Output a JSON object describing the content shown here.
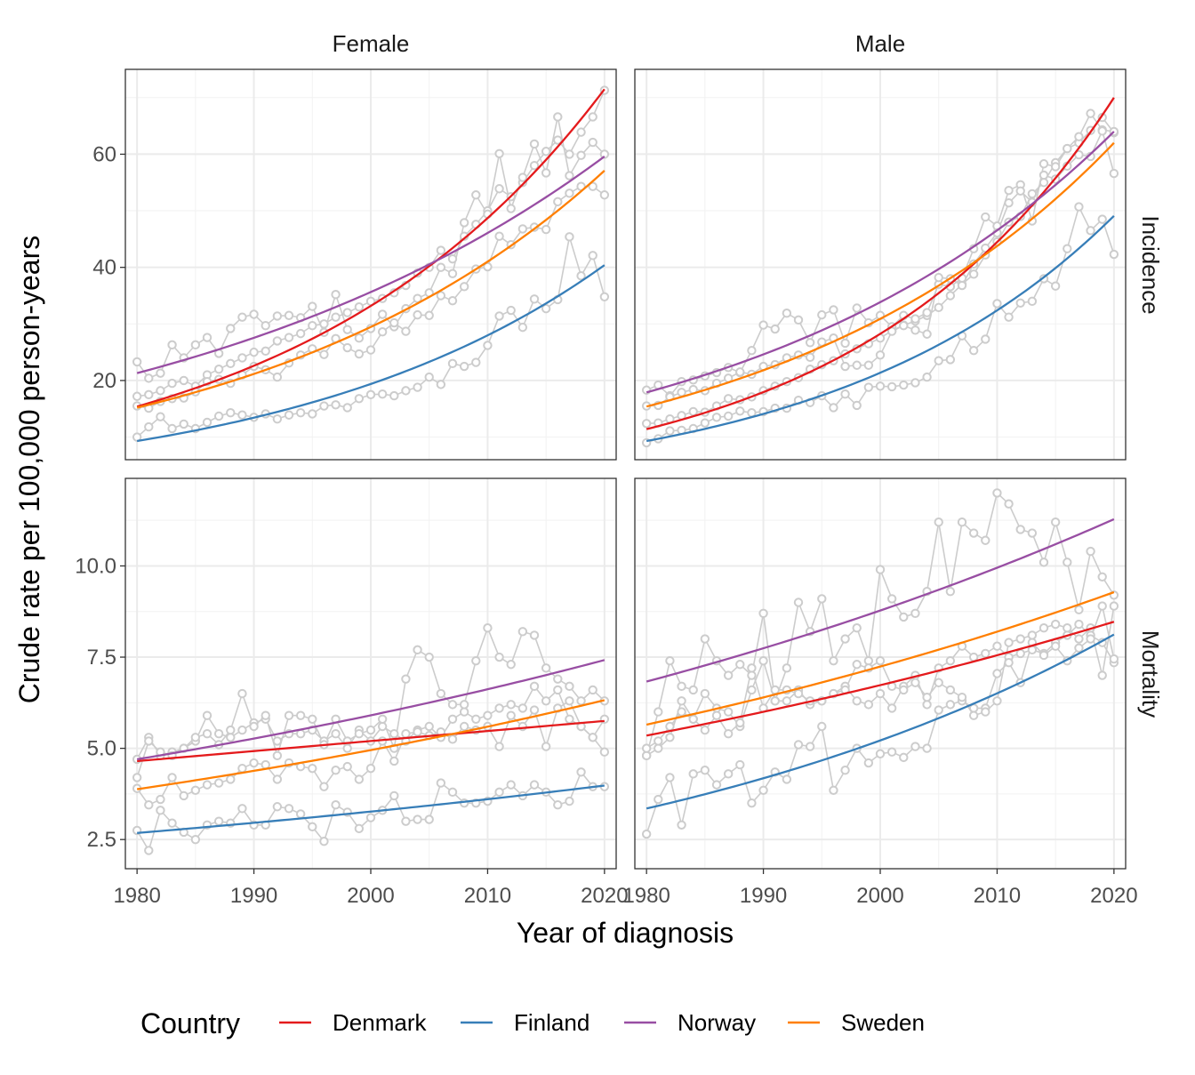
{
  "chart_data": {
    "type": "line",
    "subtype": "faceted line chart with observed points and fitted trend lines",
    "xlabel": "Year of diagnosis",
    "ylabel": "Crude rate per 100,000 person-years",
    "col_facets": [
      "Female",
      "Male"
    ],
    "row_facets": [
      "Incidence",
      "Mortality"
    ],
    "x_ticks": [
      1980,
      1990,
      2000,
      2010,
      2020
    ],
    "xlim": [
      1979,
      2021
    ],
    "row_scales": {
      "Incidence": {
        "ylim": [
          6,
          75
        ],
        "ticks": [
          20,
          40,
          60
        ],
        "tick_labels": [
          "20",
          "40",
          "60"
        ]
      },
      "Mortality": {
        "ylim": [
          1.7,
          12.4
        ],
        "ticks": [
          2.5,
          5.0,
          7.5,
          10.0
        ],
        "tick_labels": [
          "2.5",
          "5.0",
          "7.5",
          "10.0"
        ]
      }
    },
    "legend": {
      "title": "Country",
      "position": "bottom",
      "items": [
        {
          "label": "Denmark",
          "color": "#e41a1c"
        },
        {
          "label": "Finland",
          "color": "#377eb8"
        },
        {
          "label": "Norway",
          "color": "#984ea3"
        },
        {
          "label": "Sweden",
          "color": "#ff7f00"
        }
      ]
    },
    "observed_color": "#cccccc",
    "years": [
      1980,
      1981,
      1982,
      1983,
      1984,
      1985,
      1986,
      1987,
      1988,
      1989,
      1990,
      1991,
      1992,
      1993,
      1994,
      1995,
      1996,
      1997,
      1998,
      1999,
      2000,
      2001,
      2002,
      2003,
      2004,
      2005,
      2006,
      2007,
      2008,
      2009,
      2010,
      2011,
      2012,
      2013,
      2014,
      2015,
      2016,
      2017,
      2018,
      2019,
      2020
    ],
    "panels": [
      {
        "row": "Incidence",
        "col": "Female",
        "fitted": {
          "Denmark": {
            "start": 15.4,
            "end": 71.5,
            "model": "exponential"
          },
          "Finland": {
            "start": 9.3,
            "end": 40.4,
            "model": "exponential"
          },
          "Norway": {
            "start": 21.3,
            "end": 59.6,
            "model": "exponential"
          },
          "Sweden": {
            "start": 15.2,
            "end": 57.1,
            "model": "exponential"
          }
        },
        "observed": {
          "Denmark": [
            17.2,
            17.5,
            18.2,
            19.5,
            20,
            19,
            21,
            22,
            23,
            24,
            25,
            25.2,
            27,
            27.6,
            28.3,
            29.7,
            30,
            31.2,
            32,
            33,
            34,
            34.5,
            35.5,
            36.8,
            39,
            40,
            43,
            41.5,
            45.5,
            47.6,
            50,
            53.9,
            52.5,
            55,
            58,
            60.5,
            62.5,
            60,
            63.9,
            66.6,
            71.3
          ],
          "Finland": [
            10,
            11.8,
            13.6,
            11.5,
            12.3,
            11.5,
            12.6,
            13.7,
            14.3,
            13.9,
            13.5,
            14.1,
            13.2,
            13.9,
            14.3,
            14.1,
            15.5,
            15.7,
            15.2,
            16.8,
            17.5,
            17.6,
            17.3,
            18.2,
            18.8,
            20.6,
            19.3,
            23,
            22.5,
            23.2,
            26.2,
            31.4,
            32.4,
            29.4,
            34.4,
            32.7,
            34.3,
            45.4,
            38.5,
            42.1,
            34.8
          ],
          "Norway": [
            23.3,
            20.4,
            21.3,
            26.3,
            24,
            26.3,
            27.6,
            24.8,
            29.2,
            31.2,
            31.7,
            29.7,
            31.4,
            31.5,
            31.1,
            33.1,
            28.5,
            35.2,
            29,
            27.5,
            29.2,
            31.7,
            29.5,
            32.7,
            34.5,
            35.5,
            40,
            38.9,
            47.9,
            52.8,
            49.4,
            60.1,
            50.4,
            55.9,
            61.8,
            56.7,
            66.6,
            56.2,
            59.8,
            62.1,
            60
          ],
          "Sweden": [
            15.5,
            15.1,
            16.3,
            16.8,
            16.9,
            18,
            19.8,
            20.2,
            19.5,
            21,
            22.5,
            21.9,
            20.6,
            23.1,
            24.5,
            25.6,
            24.6,
            27.4,
            25.8,
            24.7,
            25.4,
            28.6,
            30.2,
            28.7,
            31.6,
            31.5,
            35,
            34.1,
            36.6,
            39.7,
            40.1,
            45.5,
            44,
            46.8,
            47.1,
            46.7,
            51.6,
            53.1,
            54.3,
            54.3,
            52.8
          ]
        }
      },
      {
        "row": "Incidence",
        "col": "Male",
        "fitted": {
          "Denmark": {
            "start": 11.4,
            "end": 70.0,
            "model": "exponential"
          },
          "Finland": {
            "start": 9.3,
            "end": 49.1,
            "model": "exponential"
          },
          "Norway": {
            "start": 17.9,
            "end": 64.0,
            "model": "exponential"
          },
          "Sweden": {
            "start": 15.4,
            "end": 62.0,
            "model": "exponential"
          }
        },
        "observed": {
          "Denmark": [
            12.4,
            12.5,
            13.2,
            13.8,
            14.5,
            14.4,
            15.5,
            16.8,
            16.6,
            17.1,
            18.2,
            19,
            19.8,
            20.5,
            22,
            22.8,
            23.5,
            24.7,
            25.6,
            26.5,
            27.5,
            28.8,
            29.8,
            30.5,
            31.5,
            32.9,
            35,
            37,
            38.8,
            42.2,
            44.5,
            48,
            49,
            53,
            55,
            58.5,
            61,
            62,
            64.2,
            66.5,
            63.8
          ],
          "Finland": [
            9,
            9.7,
            11.1,
            11.2,
            11.5,
            12.5,
            13.5,
            13.7,
            14.6,
            14.3,
            14.5,
            15.1,
            15.1,
            16.5,
            16.1,
            17.3,
            15.2,
            17.6,
            15.6,
            18.8,
            19,
            18.9,
            19.2,
            19.6,
            20.6,
            23.5,
            23.7,
            27.9,
            25.3,
            27.3,
            33.6,
            31.2,
            33.7,
            34,
            38,
            36.7,
            43.3,
            50.7,
            46.5,
            48.5,
            42.3
          ],
          "Norway": [
            18.3,
            19.2,
            17.3,
            19.8,
            20.1,
            20.8,
            21.4,
            22.3,
            21.4,
            25.3,
            29.8,
            29.1,
            31.9,
            30.7,
            26.7,
            31.6,
            32.5,
            26.6,
            32.8,
            30.2,
            31.5,
            29.5,
            31.5,
            30.9,
            32,
            37,
            36.6,
            38.1,
            43.3,
            48.9,
            47.3,
            53.6,
            54.6,
            48.2,
            58.3,
            57.8,
            61,
            63.1,
            67.2,
            64.3,
            64
          ],
          "Sweden": [
            15.5,
            15.6,
            17.1,
            17.9,
            18.4,
            18.2,
            19.5,
            20.4,
            21.5,
            21.1,
            22.5,
            22.8,
            24,
            24.5,
            24.1,
            26.8,
            27.5,
            22.5,
            22.7,
            22.7,
            24.5,
            28.7,
            29.7,
            28.9,
            28.2,
            38.2,
            38,
            36.8,
            40.6,
            43.4,
            46.1,
            51.4,
            53.5,
            51.5,
            56.3,
            55.6,
            57.9,
            59.9,
            59.6,
            64.1,
            56.6
          ]
        }
      },
      {
        "row": "Mortality",
        "col": "Female",
        "fitted": {
          "Denmark": {
            "start": 4.65,
            "end": 5.75,
            "model": "linear"
          },
          "Finland": {
            "start": 2.68,
            "end": 3.98,
            "model": "exponential"
          },
          "Norway": {
            "start": 4.7,
            "end": 7.42,
            "model": "exponential"
          },
          "Sweden": {
            "start": 3.88,
            "end": 6.32,
            "model": "exponential"
          }
        },
        "observed": {
          "Denmark": [
            4.7,
            5.3,
            4.8,
            4.9,
            5,
            5.2,
            5.9,
            5.4,
            5.3,
            5.5,
            5.7,
            5.8,
            5.2,
            5.4,
            5.4,
            5.5,
            5.2,
            5.4,
            5,
            5.5,
            5.2,
            5.6,
            5.4,
            5.2,
            5.5,
            5.6,
            5.3,
            5.8,
            6,
            5.8,
            5.9,
            6.1,
            6.2,
            6.1,
            6.7,
            6.3,
            6.6,
            5.8,
            5.6,
            5.3,
            5.8
          ],
          "Finland": [
            2.75,
            2.2,
            3.3,
            2.95,
            2.7,
            2.5,
            2.9,
            3,
            2.95,
            3.35,
            2.9,
            2.9,
            3.4,
            3.35,
            3.2,
            2.85,
            2.45,
            3.45,
            3.25,
            2.8,
            3.1,
            3.3,
            3.7,
            3,
            3.05,
            3.05,
            4.05,
            3.8,
            3.5,
            3.5,
            3.55,
            3.8,
            4,
            3.7,
            4,
            3.8,
            3.45,
            3.55,
            4.35,
            3.95,
            3.95
          ],
          "Norway": [
            4.2,
            5.2,
            4.9,
            4.8,
            5,
            5.3,
            5.4,
            5.1,
            5.5,
            6.5,
            5.6,
            5.9,
            4.8,
            5.9,
            5.9,
            5.8,
            5.1,
            5.8,
            5.2,
            5.4,
            5.5,
            5.8,
            5,
            6.9,
            7.7,
            7.5,
            6.5,
            6.2,
            6.2,
            7.4,
            8.3,
            7.5,
            7.3,
            8.2,
            8.1,
            7.2,
            6.9,
            6.7,
            6.3,
            6.6,
            6.3
          ],
          "Sweden": [
            3.9,
            3.45,
            3.6,
            4.2,
            3.7,
            3.85,
            4,
            4.05,
            4.15,
            4.45,
            4.6,
            4.55,
            4.15,
            4.6,
            4.5,
            4.45,
            3.95,
            4.4,
            4.5,
            4.15,
            4.45,
            5.2,
            4.65,
            5.4,
            5.45,
            5.35,
            5.45,
            5.25,
            5.6,
            5.5,
            5.6,
            5.05,
            5.9,
            5.6,
            6.05,
            5.05,
            6.1,
            6.3,
            5.6,
            5.3,
            4.9
          ]
        }
      },
      {
        "row": "Mortality",
        "col": "Male",
        "fitted": {
          "Denmark": {
            "start": 5.35,
            "end": 8.47,
            "model": "exponential"
          },
          "Finland": {
            "start": 3.35,
            "end": 8.12,
            "model": "exponential"
          },
          "Norway": {
            "start": 6.83,
            "end": 11.28,
            "model": "exponential"
          },
          "Sweden": {
            "start": 5.65,
            "end": 9.28,
            "model": "exponential"
          }
        },
        "observed": {
          "Denmark": [
            4.8,
            5,
            5.3,
            6.3,
            5.8,
            6.5,
            6.1,
            6,
            5.6,
            6.6,
            7.4,
            6.3,
            6.3,
            6.6,
            6.2,
            6.3,
            6.5,
            6.7,
            6.3,
            6.2,
            6.5,
            6.1,
            6.7,
            7,
            6.2,
            7.2,
            7.4,
            7.8,
            7.5,
            7.6,
            7.8,
            7.5,
            7.6,
            7.7,
            7.6,
            7.9,
            8.1,
            8.4,
            8.1,
            7.9,
            7.35
          ],
          "Finland": [
            2.65,
            3.6,
            4.2,
            2.9,
            4.3,
            4.4,
            4,
            4.3,
            4.55,
            3.5,
            3.85,
            4.35,
            4.15,
            5.1,
            5.05,
            5.6,
            3.85,
            4.4,
            5,
            4.6,
            4.85,
            4.9,
            4.75,
            5.05,
            5,
            6.05,
            6.2,
            6.3,
            6.1,
            6.1,
            7.05,
            7.35,
            6.8,
            7.9,
            7.55,
            7.8,
            7.4,
            7.75,
            8,
            8.9,
            7.45
          ],
          "Norway": [
            4.8,
            6,
            7.4,
            6.7,
            6.6,
            8,
            7.4,
            7,
            7.3,
            7,
            8.7,
            6.3,
            7.2,
            9,
            8.2,
            9.1,
            7.4,
            8,
            8.3,
            7.4,
            9.9,
            9.1,
            8.6,
            8.7,
            9.3,
            11.2,
            9.3,
            11.2,
            10.9,
            10.7,
            12,
            11.7,
            11,
            10.9,
            10.1,
            11.2,
            10.1,
            8.8,
            10.4,
            9.7,
            9.2
          ],
          "Sweden": [
            5,
            5.2,
            5.6,
            6,
            5.8,
            5.5,
            5.9,
            5.4,
            5.7,
            7.2,
            6.1,
            6.6,
            6.6,
            6.5,
            6.3,
            6.3,
            6.5,
            6.6,
            7.3,
            7.2,
            7.4,
            6.7,
            6.6,
            6.8,
            6.4,
            6.8,
            6.6,
            6.4,
            5.9,
            6,
            6.3,
            7.9,
            8,
            8.1,
            8.3,
            8.4,
            8.3,
            8,
            8.3,
            7,
            8.9
          ]
        }
      }
    ]
  }
}
